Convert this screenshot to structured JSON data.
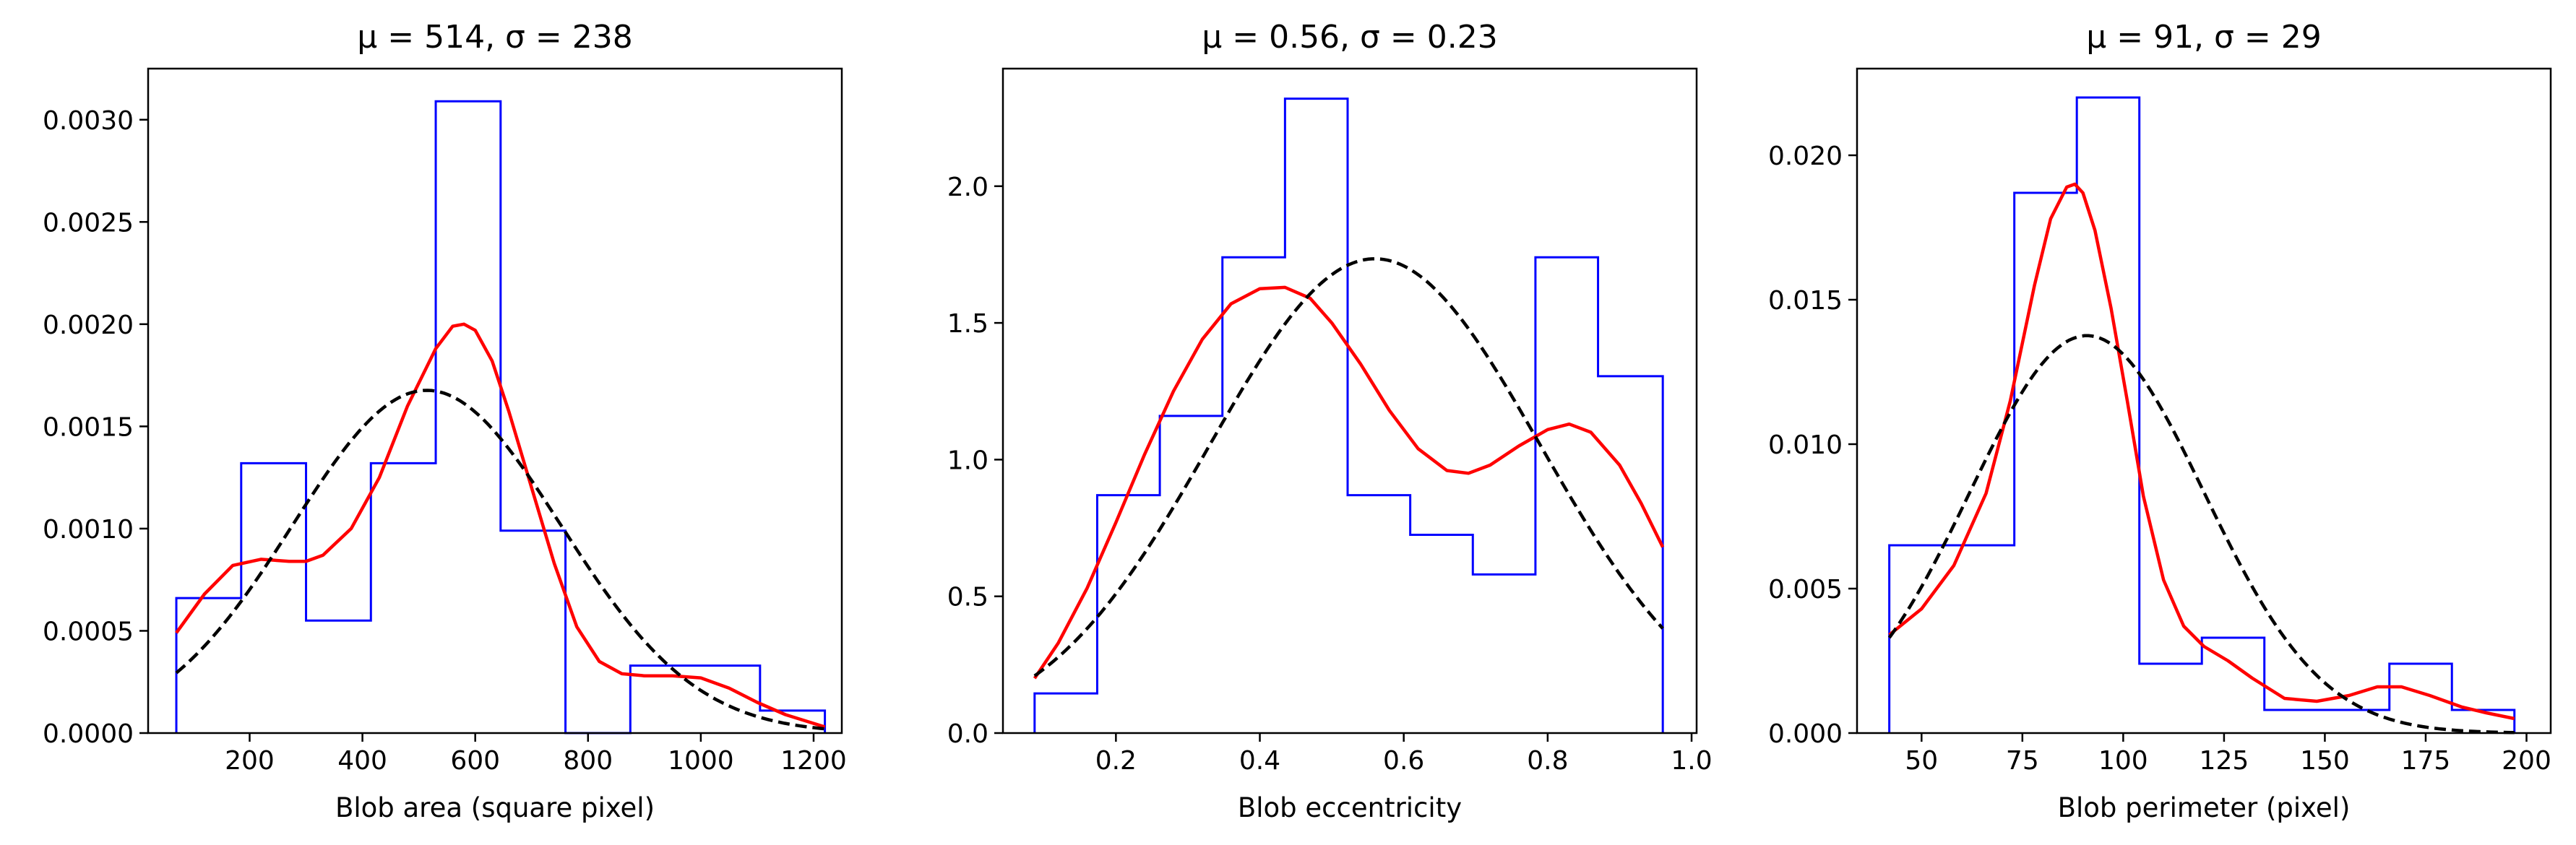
{
  "colors": {
    "histogram": "#0000ff",
    "kde": "#ff0000",
    "normal_fit": "#000000"
  },
  "chart_data": [
    {
      "type": "histogram",
      "title": "μ = 514, σ = 238",
      "xlabel": "Blob area (square pixel)",
      "ylabel": "",
      "xlim": [
        20,
        1250
      ],
      "ylim": [
        0,
        0.00325
      ],
      "xticks": [
        200,
        400,
        600,
        800,
        1000,
        1200
      ],
      "xtick_labels": [
        "200",
        "400",
        "600",
        "800",
        "1000",
        "1200"
      ],
      "yticks": [
        0,
        0.0005,
        0.001,
        0.0015,
        0.002,
        0.0025,
        0.003
      ],
      "ytick_labels": [
        "0.0000",
        "0.0005",
        "0.0010",
        "0.0015",
        "0.0020",
        "0.0025",
        "0.0030"
      ],
      "bin_edges": [
        70,
        185,
        300,
        415,
        530,
        645,
        760,
        875,
        990,
        1105,
        1220
      ],
      "densities": [
        0.00066,
        0.00132,
        0.00055,
        0.00132,
        0.00309,
        0.00099,
        0,
        0.00033,
        0.00033,
        0.00011
      ],
      "kde": {
        "x": [
          70,
          120,
          170,
          220,
          270,
          300,
          330,
          380,
          430,
          480,
          530,
          560,
          580,
          600,
          630,
          660,
          700,
          740,
          780,
          820,
          860,
          900,
          950,
          1000,
          1050,
          1100,
          1150,
          1220
        ],
        "y": [
          0.00049,
          0.00068,
          0.00082,
          0.00085,
          0.00084,
          0.00084,
          0.00087,
          0.001,
          0.00125,
          0.0016,
          0.00188,
          0.00199,
          0.002,
          0.00197,
          0.00182,
          0.00157,
          0.0012,
          0.00083,
          0.00052,
          0.00035,
          0.00029,
          0.00028,
          0.00028,
          0.00027,
          0.00022,
          0.00015,
          9e-05,
          3e-05
        ]
      },
      "normal_fit": {
        "mean": 514,
        "std": 238,
        "x_range": [
          70,
          1220
        ]
      }
    },
    {
      "type": "histogram",
      "title": "μ = 0.56, σ = 0.23",
      "xlabel": "Blob eccentricity",
      "ylabel": "",
      "xlim": [
        0.043,
        1.007
      ],
      "ylim": [
        0,
        2.43
      ],
      "xticks": [
        0.2,
        0.4,
        0.6,
        0.8,
        1.0
      ],
      "xtick_labels": [
        "0.2",
        "0.4",
        "0.6",
        "0.8",
        "1.0"
      ],
      "yticks": [
        0,
        0.5,
        1.0,
        1.5,
        2.0
      ],
      "ytick_labels": [
        "0.0",
        "0.5",
        "1.0",
        "1.5",
        "2.0"
      ],
      "bin_edges": [
        0.087,
        0.174,
        0.261,
        0.348,
        0.435,
        0.522,
        0.609,
        0.696,
        0.783,
        0.87,
        0.96
      ],
      "densities": [
        0.145,
        0.87,
        1.16,
        1.74,
        2.32,
        0.87,
        0.725,
        0.58,
        1.74,
        1.305
      ],
      "kde": {
        "x": [
          0.087,
          0.12,
          0.16,
          0.2,
          0.24,
          0.28,
          0.32,
          0.36,
          0.4,
          0.435,
          0.47,
          0.5,
          0.54,
          0.58,
          0.62,
          0.66,
          0.69,
          0.72,
          0.76,
          0.8,
          0.83,
          0.86,
          0.9,
          0.93,
          0.96
        ],
        "y": [
          0.2,
          0.33,
          0.53,
          0.77,
          1.02,
          1.25,
          1.44,
          1.57,
          1.625,
          1.63,
          1.59,
          1.5,
          1.35,
          1.18,
          1.04,
          0.96,
          0.95,
          0.98,
          1.05,
          1.11,
          1.13,
          1.1,
          0.98,
          0.84,
          0.68
        ]
      },
      "normal_fit": {
        "mean": 0.56,
        "std": 0.23,
        "x_range": [
          0.087,
          0.96
        ]
      }
    },
    {
      "type": "histogram",
      "title": "μ = 91, σ = 29",
      "xlabel": "Blob perimeter (pixel)",
      "ylabel": "",
      "xlim": [
        34,
        206
      ],
      "ylim": [
        0,
        0.023
      ],
      "xticks": [
        50,
        75,
        100,
        125,
        150,
        175,
        200
      ],
      "xtick_labels": [
        "50",
        "75",
        "100",
        "125",
        "150",
        "175",
        "200"
      ],
      "yticks": [
        0,
        0.005,
        0.01,
        0.015,
        0.02
      ],
      "ytick_labels": [
        "0.000",
        "0.005",
        "0.010",
        "0.015",
        "0.020"
      ],
      "bin_edges": [
        42,
        57.5,
        73,
        88.5,
        104,
        119.5,
        135,
        150.5,
        166,
        181.5,
        197
      ],
      "densities": [
        0.0065,
        0.0065,
        0.0187,
        0.022,
        0.0024,
        0.0033,
        0.0008,
        0.0008,
        0.0024,
        0.0008
      ],
      "kde": {
        "x": [
          42,
          50,
          58,
          66,
          72,
          78,
          82,
          86,
          88,
          90,
          93,
          97,
          101,
          105,
          110,
          115,
          120,
          126,
          132,
          140,
          148,
          156,
          163,
          169,
          176,
          184,
          190,
          197
        ],
        "y": [
          0.0034,
          0.0043,
          0.0058,
          0.0083,
          0.0115,
          0.0155,
          0.0178,
          0.0189,
          0.019,
          0.0187,
          0.0174,
          0.0147,
          0.0115,
          0.0082,
          0.0053,
          0.0037,
          0.003,
          0.0025,
          0.0019,
          0.0012,
          0.0011,
          0.0013,
          0.0016,
          0.0016,
          0.0013,
          0.0009,
          0.0007,
          0.0005
        ]
      },
      "normal_fit": {
        "mean": 91,
        "std": 29,
        "x_range": [
          42,
          197
        ]
      }
    }
  ]
}
